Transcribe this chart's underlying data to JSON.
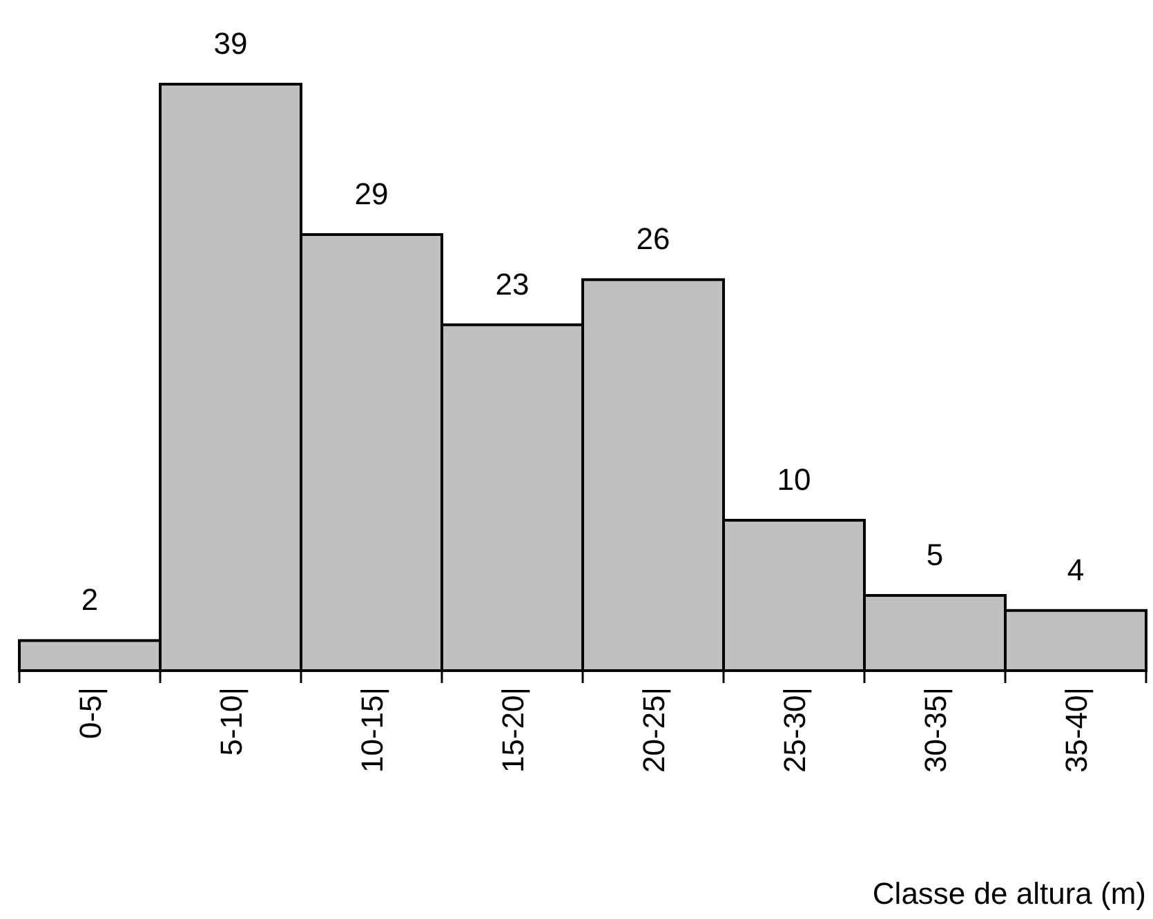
{
  "chart_data": {
    "type": "bar",
    "xlabel": "Classe de altura (m)",
    "categories": [
      "0-5|",
      "5-10|",
      "10-15|",
      "15-20|",
      "20-25|",
      "25-30|",
      "30-35|",
      "35-40|"
    ],
    "values": [
      2,
      39,
      29,
      23,
      26,
      10,
      5,
      4
    ],
    "color": "#c0c0c0",
    "data_labels": true
  }
}
